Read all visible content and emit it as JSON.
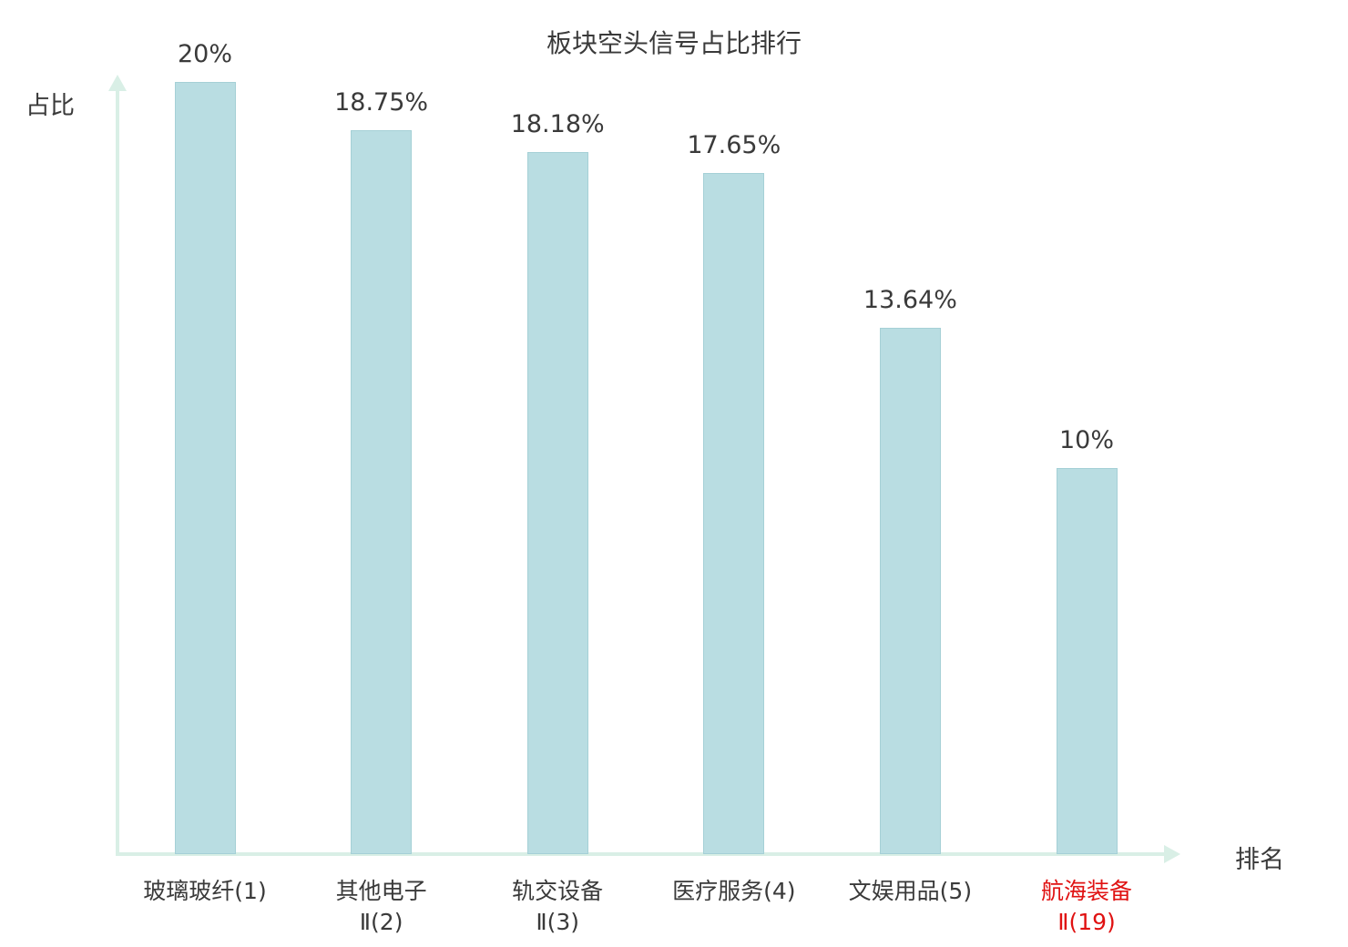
{
  "chart_data": {
    "type": "bar",
    "title": "板块空头信号占比排行",
    "ylabel": "占比",
    "xlabel": "排名",
    "ylim": [
      0,
      20
    ],
    "grid": false,
    "legend": "none",
    "bar_color": "#b9dde2",
    "bar_border_color": "#a5d0d6",
    "axis_color": "#d9efe6",
    "label_color": "#3a3a3a",
    "highlight_color": "#e01212",
    "categories": [
      {
        "lines": [
          "玻璃玻纤(1)"
        ],
        "highlight": false
      },
      {
        "lines": [
          "其他电子",
          "Ⅱ(2)"
        ],
        "highlight": false
      },
      {
        "lines": [
          "轨交设备",
          "Ⅱ(3)"
        ],
        "highlight": false
      },
      {
        "lines": [
          "医疗服务(4)"
        ],
        "highlight": false
      },
      {
        "lines": [
          "文娱用品(5)"
        ],
        "highlight": false
      },
      {
        "lines": [
          "航海装备",
          "Ⅱ(19)"
        ],
        "highlight": true
      }
    ],
    "values": [
      20,
      18.75,
      18.18,
      17.65,
      13.64,
      10
    ],
    "value_labels": [
      "20%",
      "18.75%",
      "18.18%",
      "17.65%",
      "13.64%",
      "10%"
    ]
  }
}
